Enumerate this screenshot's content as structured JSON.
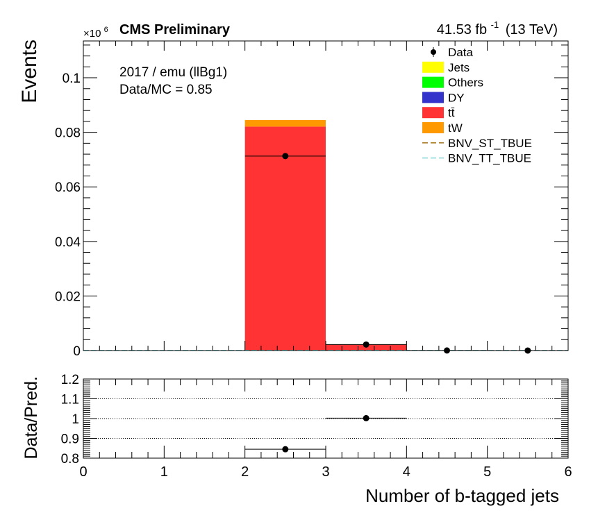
{
  "header": {
    "experiment": "CMS Preliminary",
    "lumi": "41.53 fb",
    "lumi_exp": "-1",
    "energy": "(13 TeV)"
  },
  "annotation": {
    "line1": "2017 / emu (llBg1)",
    "line2": "Data/MC = 0.85"
  },
  "chart_data": [
    {
      "type": "bar",
      "subtype": "stacked-histogram",
      "ylabel": "Events",
      "y_multiplier": "×10",
      "y_multiplier_exp": "6",
      "ylim": [
        0,
        0.1135
      ],
      "xlim": [
        0,
        6
      ],
      "bin_edges": [
        0,
        1,
        2,
        3,
        4,
        5,
        6
      ],
      "yticks": [
        "0",
        "0.02",
        "0.04",
        "0.06",
        "0.08",
        "0.1"
      ],
      "ytick_values": [
        0,
        0.02,
        0.04,
        0.06,
        0.08,
        0.1
      ],
      "stack": [
        {
          "name": "Jets",
          "color": "#ffff00",
          "values": [
            0,
            0,
            0,
            0,
            0,
            0
          ]
        },
        {
          "name": "Others",
          "color": "#00ff00",
          "values": [
            0,
            0,
            0,
            0,
            0,
            0
          ]
        },
        {
          "name": "DY",
          "color": "#3333cc",
          "values": [
            0,
            0,
            0,
            0,
            0,
            0
          ]
        },
        {
          "name": "tt̄",
          "color": "#ff3333",
          "values": [
            0,
            0,
            0.0821,
            0.0022,
            3e-05,
            2e-06
          ]
        },
        {
          "name": "tW",
          "color": "#ff9900",
          "values": [
            0,
            0,
            0.0024,
            0.0001,
            0,
            0
          ]
        }
      ],
      "signals": [
        {
          "name": "BNV_ST_TBUE",
          "color": "#996600",
          "values": [
            0.0001,
            0.0001,
            0.0001,
            0.0001,
            0.0001,
            0.0001
          ]
        },
        {
          "name": "BNV_TT_TBUE",
          "color": "#66cccc",
          "values": [
            0.0001,
            0.0001,
            0.0001,
            0.0001,
            0.0001,
            0.0001
          ]
        }
      ],
      "data": {
        "name": "Data",
        "points": [
          {
            "x": 2.5,
            "y": 0.0713
          },
          {
            "x": 3.5,
            "y": 0.0022
          },
          {
            "x": 4.5,
            "y": 3e-05
          },
          {
            "x": 5.5,
            "y": 2e-06
          }
        ]
      },
      "legend_position": "top-right"
    },
    {
      "type": "scatter",
      "ylabel": "Data/Pred.",
      "xlabel": "Number of b-tagged jets",
      "xlim": [
        0,
        6
      ],
      "ylim": [
        0.8,
        1.2
      ],
      "xticks": [
        "0",
        "1",
        "2",
        "3",
        "4",
        "5",
        "6"
      ],
      "xtick_values": [
        0,
        1,
        2,
        3,
        4,
        5,
        6
      ],
      "yticks": [
        "0.8",
        "0.9",
        "1",
        "1.1",
        "1.2"
      ],
      "ytick_values": [
        0.8,
        0.9,
        1.0,
        1.1,
        1.2
      ],
      "gridlines_y": [
        0.9,
        1.0,
        1.1
      ],
      "points": [
        {
          "x": 2.5,
          "y": 0.845,
          "xerr": 0.5,
          "yerr": 0.003
        },
        {
          "x": 3.5,
          "y": 1.002,
          "xerr": 0.5,
          "yerr": 0.012
        }
      ]
    }
  ]
}
